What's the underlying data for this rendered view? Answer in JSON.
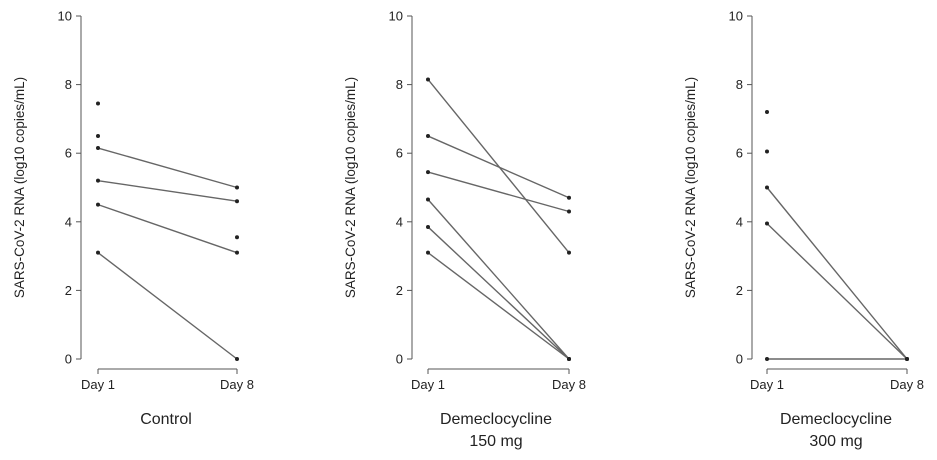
{
  "chart_data": [
    {
      "type": "line",
      "title_lines": [
        "Control"
      ],
      "ylabel": "SARS-CoV-2 RNA (log10 copies/mL)",
      "categories": [
        "Day 1",
        "Day 8"
      ],
      "ylim": [
        0,
        10
      ],
      "yticks": [
        "0",
        "2",
        "4",
        "6",
        "8",
        "10"
      ],
      "series": [
        {
          "values": [
            6.15,
            5.0
          ]
        },
        {
          "values": [
            5.2,
            4.6
          ]
        },
        {
          "values": [
            4.5,
            3.1
          ]
        },
        {
          "values": [
            3.1,
            0.0
          ]
        },
        {
          "values": [
            7.45,
            null
          ]
        },
        {
          "values": [
            6.5,
            null
          ]
        },
        {
          "values": [
            null,
            3.55
          ]
        }
      ]
    },
    {
      "type": "line",
      "title_lines": [
        "Demeclocycline",
        "150 mg"
      ],
      "ylabel": "SARS-CoV-2 RNA (log10 copies/mL)",
      "categories": [
        "Day 1",
        "Day 8"
      ],
      "ylim": [
        0,
        10
      ],
      "yticks": [
        "0",
        "2",
        "4",
        "6",
        "8",
        "10"
      ],
      "series": [
        {
          "values": [
            8.15,
            3.1
          ]
        },
        {
          "values": [
            6.5,
            4.7
          ]
        },
        {
          "values": [
            5.45,
            4.3
          ]
        },
        {
          "values": [
            4.65,
            0.0
          ]
        },
        {
          "values": [
            3.85,
            0.0
          ]
        },
        {
          "values": [
            3.1,
            0.0
          ]
        }
      ]
    },
    {
      "type": "line",
      "title_lines": [
        "Demeclocycline",
        "300 mg"
      ],
      "ylabel": "SARS-CoV-2 RNA (log10 copies/mL)",
      "categories": [
        "Day 1",
        "Day 8"
      ],
      "ylim": [
        0,
        10
      ],
      "yticks": [
        "0",
        "2",
        "4",
        "6",
        "8",
        "10"
      ],
      "series": [
        {
          "values": [
            5.0,
            0.0
          ]
        },
        {
          "values": [
            3.95,
            0.0
          ]
        },
        {
          "values": [
            0.0,
            0.0
          ]
        },
        {
          "values": [
            7.2,
            null
          ]
        },
        {
          "values": [
            6.05,
            null
          ]
        }
      ]
    }
  ]
}
